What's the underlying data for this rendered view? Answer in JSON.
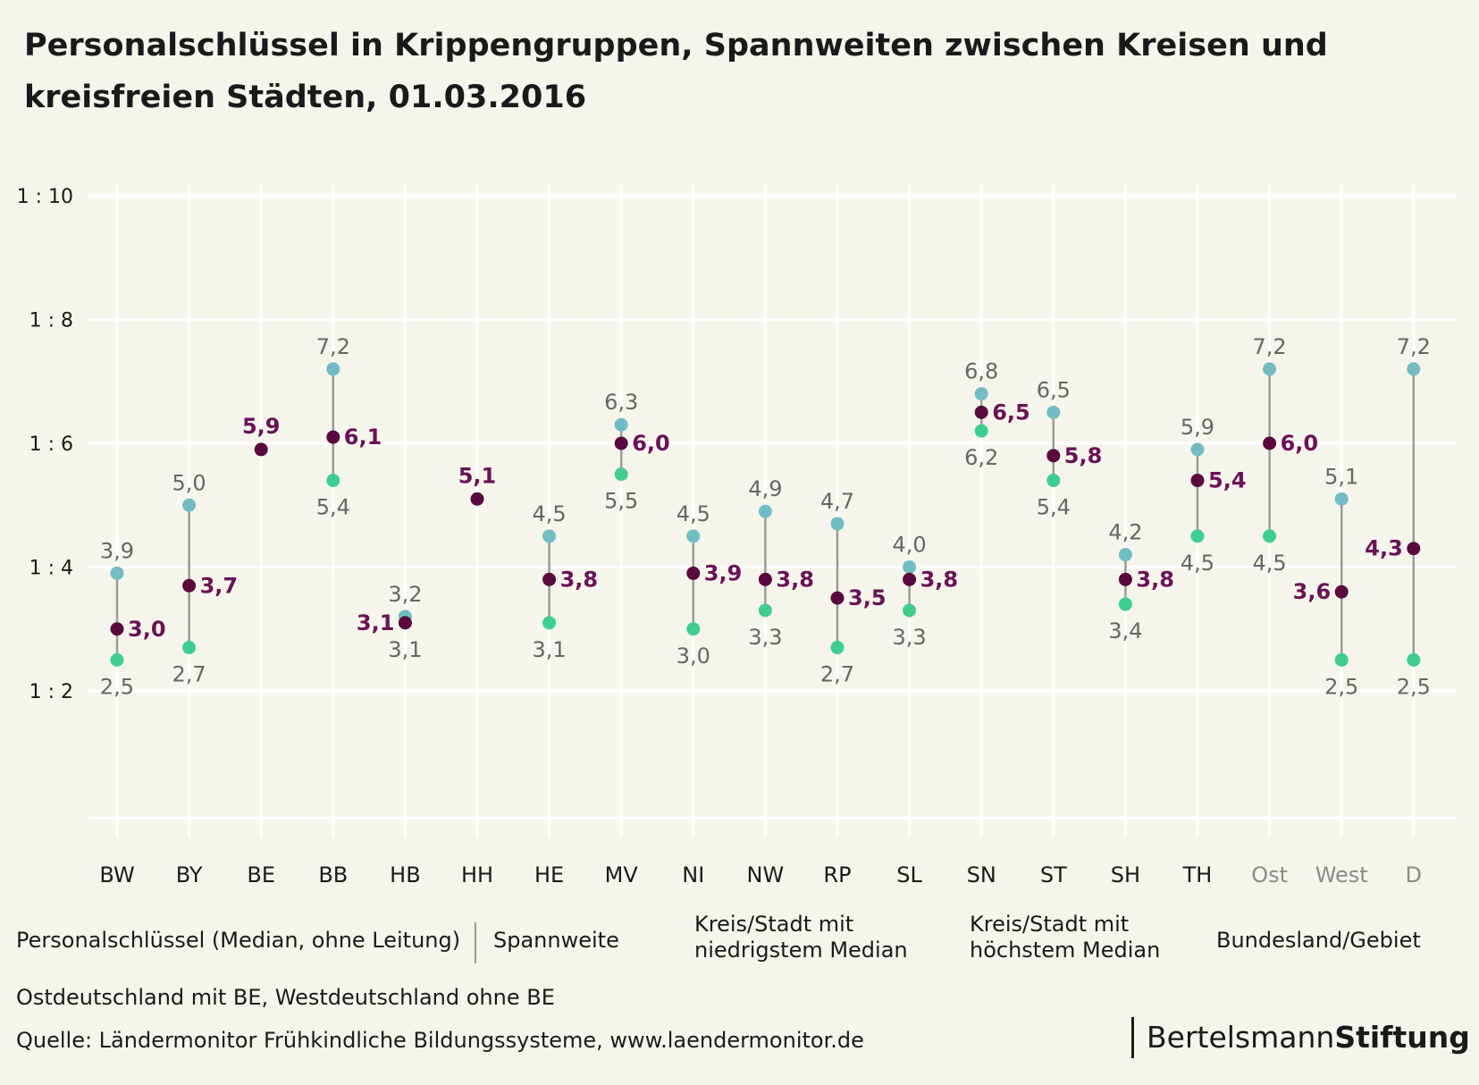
{
  "title": "Personalschlüssel in Krippengruppen, Spannweiten zwischen Kreisen und kreisfreien Städten, 01.03.2016",
  "colors": {
    "background": "#f6f5ec",
    "grid": "#ffffff",
    "range_line": "#9a9a9a",
    "min_dot": "#3ecf8e",
    "max_dot": "#72bcc4",
    "state_dot": "#5a0a3f",
    "state_label": "#6b1257",
    "value_label": "#666666",
    "tick_text": "#1a1a1a",
    "tick_text_aggregate": "#8a8a8a"
  },
  "legend": {
    "heading": "Personalschlüssel (Median, ohne Leitung)",
    "range": "Spannweite",
    "min_line1": "Kreis/Stadt mit",
    "min_line2": "niedrigstem Median",
    "max_line1": "Kreis/Stadt mit",
    "max_line2": "höchstem Median",
    "state": "Bundesland/Gebiet"
  },
  "note": "Ostdeutschland mit BE, Westdeutschland ohne BE",
  "source": "Quelle: Ländermonitor Frühkindliche Bildungssysteme, www.laendermonitor.de",
  "brand": {
    "light": "Bertelsmann",
    "bold": "Stiftung"
  },
  "chart_data": {
    "type": "scatter",
    "y_tick_labels": [
      "1 : 2",
      "1 : 4",
      "1 : 6",
      "1 : 8",
      "1 : 10"
    ],
    "y_ticks": [
      2,
      4,
      6,
      8,
      10
    ],
    "ylim": [
      0,
      10
    ],
    "grid": true,
    "legend_position": "bottom",
    "categories": [
      "BW",
      "BY",
      "BE",
      "BB",
      "HB",
      "HH",
      "HE",
      "MV",
      "NI",
      "NW",
      "RP",
      "SL",
      "SN",
      "ST",
      "SH",
      "TH",
      "Ost",
      "West",
      "D"
    ],
    "aggregate_categories": [
      "Ost",
      "West",
      "D"
    ],
    "series": [
      {
        "name": "Kreis/Stadt mit niedrigstem Median",
        "values": [
          2.5,
          2.7,
          null,
          5.4,
          3.1,
          null,
          3.1,
          5.5,
          3.0,
          3.3,
          2.7,
          3.3,
          6.2,
          5.4,
          3.4,
          4.5,
          4.5,
          2.5,
          2.5
        ]
      },
      {
        "name": "Kreis/Stadt mit höchstem Median",
        "values": [
          3.9,
          5.0,
          null,
          7.2,
          3.2,
          null,
          4.5,
          6.3,
          4.5,
          4.9,
          4.7,
          4.0,
          6.8,
          6.5,
          4.2,
          5.9,
          7.2,
          5.1,
          7.2
        ]
      },
      {
        "name": "Bundesland/Gebiet",
        "values": [
          3.0,
          3.7,
          5.9,
          6.1,
          3.1,
          5.1,
          3.8,
          6.0,
          3.9,
          3.8,
          3.5,
          3.8,
          6.5,
          5.8,
          3.8,
          5.4,
          6.0,
          3.6,
          4.3
        ]
      }
    ],
    "labels": {
      "min": [
        "2,5",
        "2,7",
        "",
        "5,4",
        "3,1",
        "",
        "3,1",
        "5,5",
        "3,0",
        "3,3",
        "2,7",
        "3,3",
        "6,2",
        "5,4",
        "3,4",
        "4,5",
        "4,5",
        "2,5",
        "2,5"
      ],
      "max": [
        "3,9",
        "5,0",
        "",
        "7,2",
        "3,2",
        "",
        "4,5",
        "6,3",
        "4,5",
        "4,9",
        "4,7",
        "4,0",
        "6,8",
        "6,5",
        "4,2",
        "5,9",
        "7,2",
        "5,1",
        "7,2"
      ],
      "state": [
        "3,0",
        "3,7",
        "5,9",
        "6,1",
        "3,1",
        "5,1",
        "3,8",
        "6,0",
        "3,9",
        "3,8",
        "3,5",
        "3,8",
        "6,5",
        "5,8",
        "3,8",
        "5,4",
        "6,0",
        "3,6",
        "4,3"
      ]
    },
    "state_label_side": [
      "right",
      "right",
      "above",
      "right",
      "left",
      "above",
      "right",
      "right",
      "right",
      "right",
      "right",
      "right",
      "right",
      "right",
      "right",
      "right",
      "right",
      "left",
      "left"
    ]
  }
}
